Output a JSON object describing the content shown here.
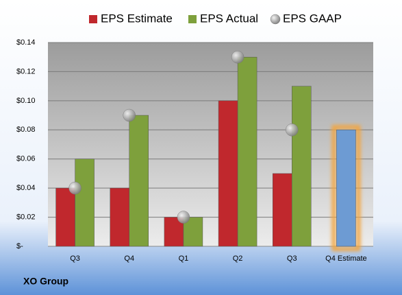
{
  "chart_data": {
    "type": "bar",
    "categories": [
      "Q3",
      "Q4",
      "Q1",
      "Q2",
      "Q3",
      "Q4 Estimate"
    ],
    "series": [
      {
        "name": "EPS Estimate",
        "color": "#c0282d",
        "colors": [
          "#c0282d",
          "#c0282d",
          "#c0282d",
          "#c0282d",
          "#c0282d",
          "#6d9bd3"
        ],
        "values": [
          0.04,
          0.04,
          0.02,
          0.1,
          0.05,
          0.08
        ]
      },
      {
        "name": "EPS Actual",
        "color": "#7ea03c",
        "values": [
          0.06,
          0.09,
          0.02,
          0.13,
          0.11,
          null
        ]
      },
      {
        "name": "EPS GAAP",
        "color": "#a6a6a6",
        "type": "scatter",
        "values": [
          0.04,
          0.09,
          0.02,
          0.13,
          0.08,
          null
        ]
      }
    ],
    "ylim": [
      0,
      0.14
    ],
    "yticks": [
      {
        "value": 0,
        "label": "$-"
      },
      {
        "value": 0.02,
        "label": "$0.02"
      },
      {
        "value": 0.04,
        "label": "$0.04"
      },
      {
        "value": 0.06,
        "label": "$0.06"
      },
      {
        "value": 0.08,
        "label": "$0.08"
      },
      {
        "value": 0.1,
        "label": "$0.10"
      },
      {
        "value": 0.12,
        "label": "$0.12"
      },
      {
        "value": 0.14,
        "label": "$0.14"
      }
    ],
    "grid": true,
    "footer": "XO Group"
  }
}
